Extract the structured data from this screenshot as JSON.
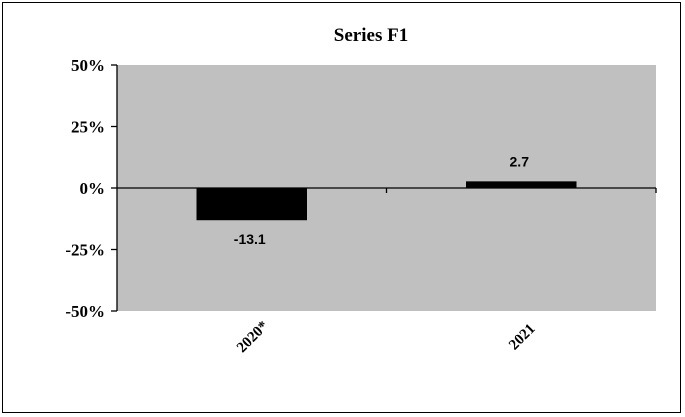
{
  "chart_data": {
    "type": "bar",
    "title": "Series F1",
    "xlabel": "",
    "ylabel": "",
    "categories": [
      "2020*",
      "2021"
    ],
    "values": [
      -13.1,
      2.7
    ],
    "data_labels": [
      "-13.1",
      "2.7"
    ],
    "ylim": [
      -50,
      50
    ],
    "yticks": [
      50,
      25,
      0,
      -25,
      -50
    ],
    "ytick_labels": [
      "50%",
      "25%",
      "0%",
      "-25%",
      "-50%"
    ],
    "grid": false,
    "legend": "none",
    "colors": {
      "plot_background": "#c0c0c0",
      "bar": "#000000",
      "axis": "#000000"
    }
  }
}
